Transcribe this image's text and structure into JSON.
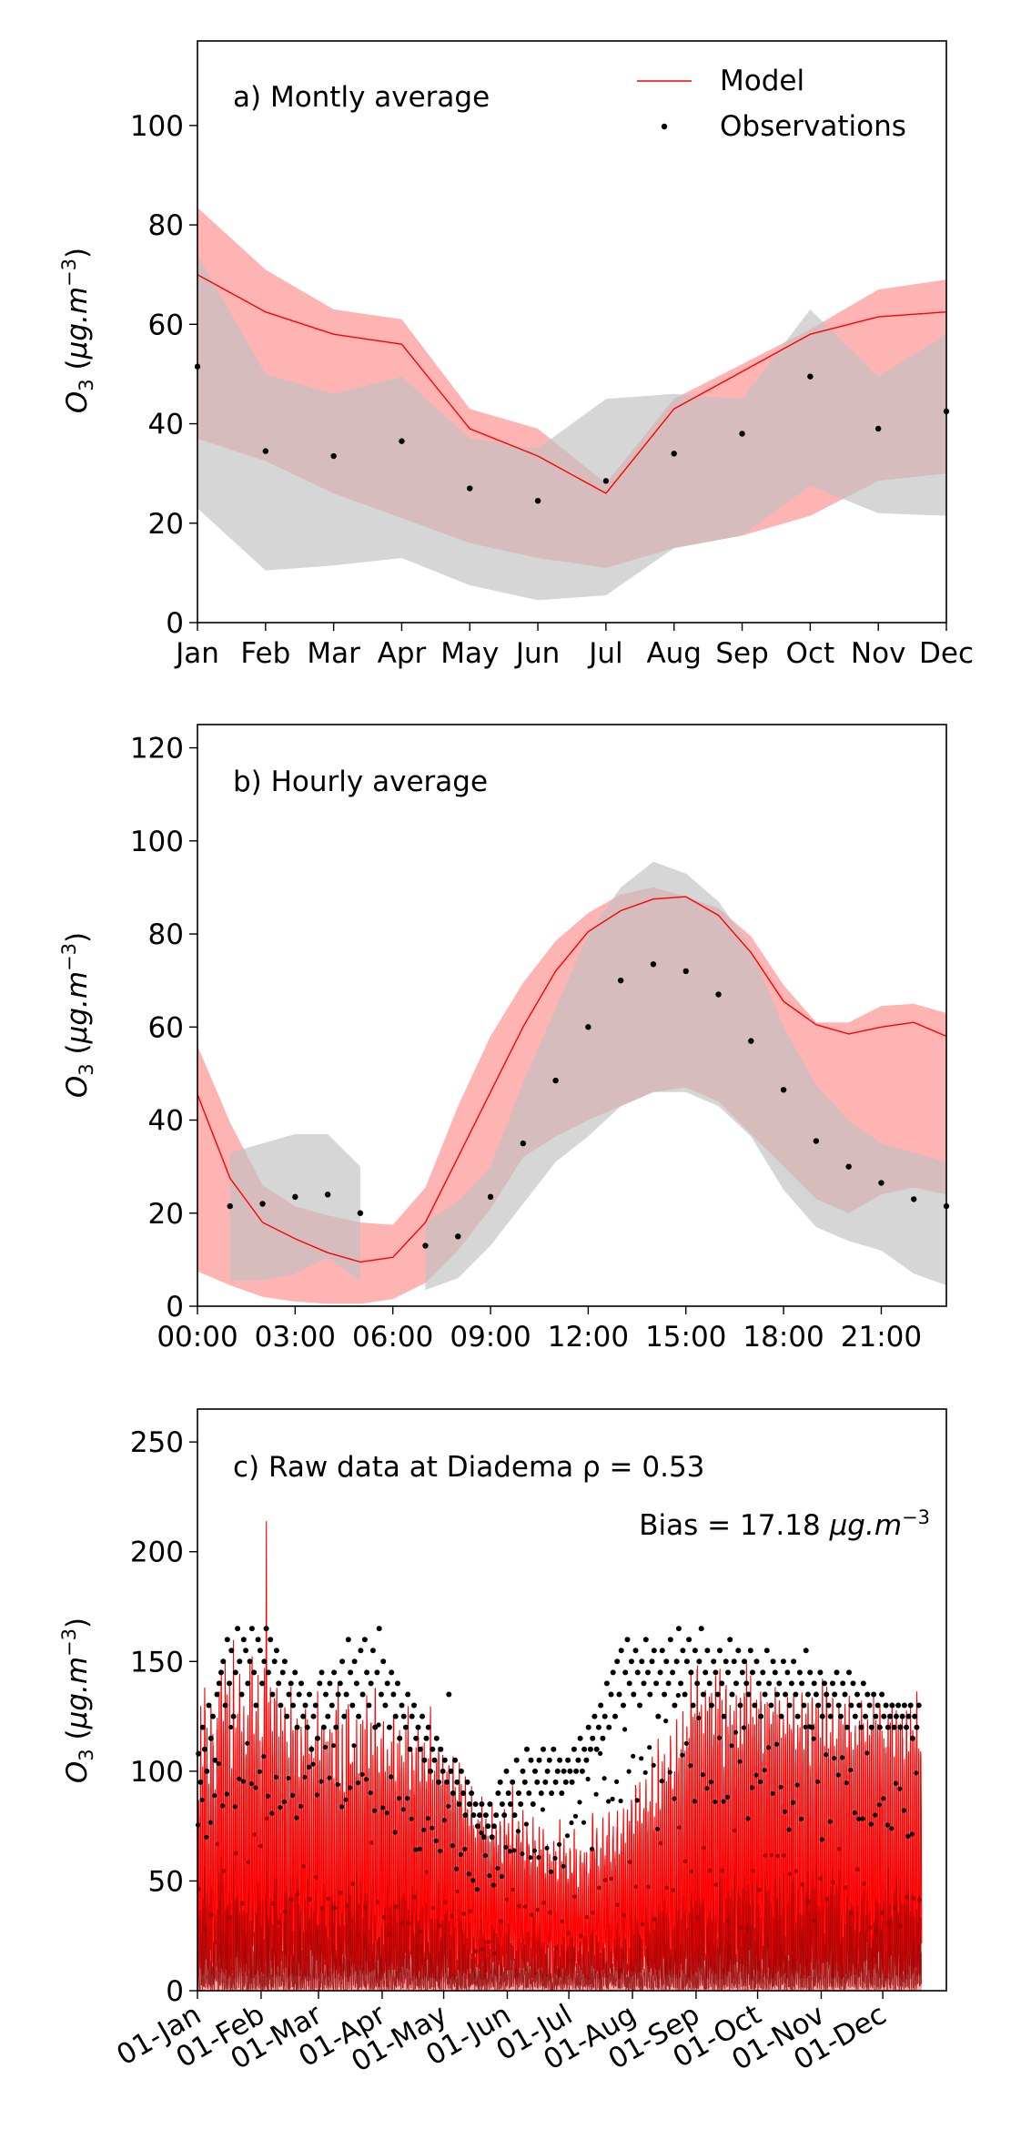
{
  "chart_data": [
    {
      "type": "line",
      "annotation": "a) Montly average",
      "ylabel": "O3 (μg.m⁻³)",
      "ylim": [
        0,
        117
      ],
      "yticks": [
        0,
        20,
        40,
        60,
        80,
        100
      ],
      "categories": [
        "Jan",
        "Feb",
        "Mar",
        "Apr",
        "May",
        "Jun",
        "Jul",
        "Aug",
        "Sep",
        "Oct",
        "Nov",
        "Dec"
      ],
      "legend": {
        "position": "top-right",
        "entries": [
          "Model",
          "Observations"
        ]
      },
      "series": [
        {
          "name": "Model",
          "kind": "line",
          "color": "#ff0000",
          "values": [
            70,
            62.5,
            58,
            56,
            39,
            33.5,
            26,
            43,
            50.5,
            58,
            61.5,
            62.5
          ]
        },
        {
          "name": "Observations",
          "kind": "points",
          "color": "#000000",
          "values": [
            51.5,
            34.5,
            33.5,
            36.5,
            27,
            24.5,
            28.5,
            34,
            38,
            49.5,
            39,
            42.5
          ]
        }
      ],
      "bands": [
        {
          "of": "Model",
          "color": "#ff8c8c",
          "lower": [
            37,
            32.5,
            26,
            21,
            16,
            13,
            11,
            15,
            17.5,
            21.5,
            28.5,
            30
          ],
          "upper": [
            83.5,
            71,
            63,
            61,
            43,
            39,
            28,
            45,
            52,
            59,
            67,
            69
          ]
        },
        {
          "of": "Observations",
          "color": "#c0c0c0",
          "lower": [
            23,
            10.5,
            11.5,
            13,
            7.5,
            4.5,
            5.5,
            15,
            17.5,
            27.5,
            22,
            21.5
          ],
          "upper": [
            74,
            50,
            46,
            49.5,
            37,
            35,
            45,
            46,
            45,
            63,
            49.5,
            58
          ]
        }
      ]
    },
    {
      "type": "line",
      "annotation": "b) Hourly average",
      "ylabel": "O3 (μg.m⁻³)",
      "ylim": [
        0,
        125
      ],
      "yticks": [
        0,
        20,
        40,
        60,
        80,
        100,
        120
      ],
      "xlim": [
        0,
        23
      ],
      "xticks": [
        "00:00",
        "03:00",
        "06:00",
        "09:00",
        "12:00",
        "15:00",
        "18:00",
        "21:00"
      ],
      "x": [
        0,
        1,
        2,
        3,
        4,
        5,
        6,
        7,
        8,
        9,
        10,
        11,
        12,
        13,
        14,
        15,
        16,
        17,
        18,
        19,
        20,
        21,
        22,
        23
      ],
      "series": [
        {
          "name": "Model",
          "kind": "line",
          "color": "#ff0000",
          "values": [
            45.5,
            27.5,
            18,
            14.5,
            11.5,
            9.5,
            10.5,
            18,
            32,
            46,
            60,
            72,
            80.5,
            85,
            87.5,
            88,
            84,
            76,
            65.5,
            60.5,
            58.5,
            60,
            61,
            58
          ]
        },
        {
          "name": "Observations",
          "kind": "points",
          "color": "#000000",
          "values": [
            null,
            21.5,
            22,
            23.5,
            24,
            20,
            null,
            13,
            15,
            23.5,
            35,
            48.5,
            60,
            70,
            73.5,
            72,
            67,
            57,
            46.5,
            35.5,
            30,
            26.5,
            23,
            21.5
          ]
        }
      ],
      "bands": [
        {
          "of": "Model",
          "color": "#ff8c8c",
          "lower": [
            7.5,
            4.5,
            2,
            1,
            0.5,
            0.5,
            1.5,
            5,
            12,
            21,
            32,
            36.5,
            40,
            43,
            46,
            47,
            44,
            37,
            30,
            23,
            20,
            24,
            25.5,
            24
          ],
          "upper": [
            56,
            39.5,
            26,
            21.5,
            19.5,
            18,
            17.5,
            25.5,
            43,
            58,
            69.5,
            78.5,
            84.5,
            88.5,
            90,
            88,
            85.5,
            79.5,
            69,
            61,
            61,
            64.5,
            65,
            63
          ]
        },
        {
          "of": "Observations",
          "color": "#c0c0c0",
          "lower": [
            null,
            5.5,
            5.5,
            7,
            10.5,
            5.5,
            null,
            3.5,
            6,
            13,
            22,
            31,
            36.5,
            43,
            46,
            46,
            43,
            36.5,
            25,
            17,
            14,
            12,
            7,
            4.5
          ],
          "upper": [
            null,
            33,
            35,
            37,
            37,
            30,
            null,
            18,
            22.5,
            30,
            48,
            64,
            80,
            90,
            95.5,
            93,
            87,
            77,
            60,
            47.5,
            40,
            35,
            33,
            31
          ]
        }
      ]
    },
    {
      "type": "line",
      "annotation": "c) Raw data at Diadema ρ = 0.53",
      "annotation2": "Bias = 17.18 μg.m⁻³",
      "ylabel": "O3 (μg.m⁻³)",
      "ylim": [
        0,
        265
      ],
      "yticks": [
        0,
        50,
        100,
        150,
        200,
        250
      ],
      "xticks": [
        "01-Jan",
        "01-Feb",
        "01-Mar",
        "01-Apr",
        "01-May",
        "01-Jun",
        "01-Jul",
        "01-Aug",
        "01-Sep",
        "01-Oct",
        "01-Nov",
        "01-Dec"
      ],
      "xtick_days": [
        0,
        31,
        59,
        90,
        120,
        151,
        181,
        212,
        243,
        273,
        304,
        334
      ],
      "xlim_days": [
        0,
        365
      ],
      "model_color": "#ff0000",
      "obs_color": "#000000",
      "daily_model_peak": [
        95,
        140,
        110,
        150,
        120,
        105,
        130,
        125,
        100,
        135,
        145,
        160,
        130,
        155,
        140,
        150,
        120,
        165,
        135,
        145,
        150,
        125,
        140,
        120,
        145,
        155,
        175,
        130,
        140,
        150,
        120,
        135,
        150,
        215,
        140,
        155,
        130,
        150,
        145,
        120,
        140,
        130,
        150,
        120,
        110,
        145,
        135,
        125,
        140,
        110,
        130,
        120,
        140,
        125,
        115,
        130,
        110,
        120,
        145,
        120,
        130,
        140,
        115,
        125,
        120,
        135,
        110,
        130,
        140,
        105,
        125,
        115,
        130,
        140,
        120,
        110,
        125,
        135,
        115,
        140,
        130,
        120,
        145,
        120,
        130,
        115,
        150,
        120,
        105,
        130,
        140,
        115,
        125,
        110,
        120,
        135,
        105,
        115,
        130,
        120,
        110,
        120,
        135,
        100,
        125,
        110,
        120,
        130,
        105,
        115,
        120,
        105,
        110,
        130,
        100,
        115,
        105,
        120,
        95,
        110,
        105,
        100,
        115,
        95,
        110,
        100,
        90,
        105,
        95,
        85,
        100,
        90,
        80,
        95,
        85,
        75,
        90,
        80,
        95,
        75,
        85,
        80,
        70,
        90,
        75,
        85,
        70,
        80,
        65,
        85,
        75,
        80,
        70,
        95,
        65,
        75,
        80,
        70,
        85,
        60,
        75,
        70,
        65,
        80,
        70,
        60,
        75,
        65,
        80,
        55,
        70,
        65,
        60,
        75,
        65,
        55,
        80,
        60,
        70,
        65,
        55,
        70,
        60,
        75,
        65,
        50,
        70,
        60,
        65,
        75,
        55,
        70,
        85,
        65,
        75,
        60,
        70,
        80,
        65,
        75,
        90,
        60,
        80,
        70,
        85,
        65,
        75,
        95,
        70,
        85,
        80,
        90,
        75,
        95,
        85,
        100,
        80,
        90,
        105,
        85,
        95,
        110,
        90,
        100,
        115,
        95,
        105,
        120,
        100,
        110,
        125,
        105,
        115,
        130,
        110,
        120,
        135,
        115,
        140,
        120,
        150,
        125,
        135,
        160,
        130,
        145,
        120,
        155,
        135,
        140,
        150,
        125,
        145,
        130,
        150,
        140,
        120,
        155,
        135,
        145,
        125,
        150,
        140,
        130,
        155,
        120,
        145,
        160,
        135,
        150,
        125,
        140,
        155,
        130,
        145,
        120,
        150,
        135,
        155,
        125,
        140,
        145,
        130,
        150,
        120,
        140,
        135,
        150,
        125,
        145,
        135,
        120,
        140,
        130,
        145,
        125,
        135,
        150,
        120,
        140,
        125,
        145,
        135,
        120,
        150,
        130,
        140,
        125,
        135,
        145,
        120,
        130,
        140,
        125,
        135,
        150,
        120,
        140,
        130,
        125,
        145,
        120,
        135,
        140,
        125,
        130,
        150,
        120,
        135,
        140,
        125,
        130,
        145,
        120,
        135,
        125,
        140,
        130,
        145,
        120,
        135,
        125,
        140,
        130,
        120,
        145,
        125,
        135,
        130,
        120,
        140,
        125,
        130
      ],
      "daily_obs_peak": [
        108,
        95,
        120,
        110,
        100,
        130,
        115,
        125,
        105,
        135,
        140,
        145,
        150,
        130,
        160,
        140,
        155,
        125,
        145,
        165,
        150,
        135,
        160,
        155,
        140,
        150,
        165,
        145,
        130,
        160,
        155,
        140,
        150,
        165,
        145,
        160,
        135,
        150,
        155,
        140,
        130,
        145,
        150,
        125,
        135,
        140,
        130,
        145,
        120,
        135,
        140,
        125,
        130,
        120,
        135,
        110,
        125,
        130,
        115,
        140,
        145,
        120,
        135,
        125,
        140,
        130,
        145,
        120,
        135,
        140,
        150,
        125,
        135,
        160,
        145,
        130,
        150,
        140,
        125,
        155,
        135,
        160,
        145,
        130,
        140,
        155,
        120,
        145,
        165,
        135,
        150,
        130,
        140,
        120,
        145,
        135,
        125,
        140,
        115,
        130,
        125,
        120,
        135,
        110,
        125,
        130,
        115,
        120,
        110,
        125,
        105,
        115,
        120,
        100,
        110,
        105,
        115,
        95,
        110,
        100,
        105,
        95,
        135,
        100,
        90,
        105,
        95,
        85,
        100,
        90,
        80,
        95,
        85,
        90,
        80,
        85,
        75,
        80,
        85,
        70,
        80,
        75,
        85,
        70,
        75,
        80,
        90,
        95,
        85,
        80,
        100,
        90,
        85,
        95,
        80,
        105,
        90,
        85,
        100,
        95,
        110,
        90,
        105,
        85,
        100,
        95,
        105,
        90,
        110,
        95,
        100,
        105,
        90,
        110,
        95,
        100,
        105,
        90,
        100,
        95,
        105,
        100,
        95,
        110,
        100,
        105,
        115,
        100,
        110,
        105,
        120,
        110,
        115,
        125,
        110,
        120,
        130,
        115,
        125,
        140,
        120,
        135,
        145,
        125,
        150,
        135,
        155,
        130,
        145,
        160,
        140,
        150,
        135,
        155,
        145,
        130,
        150,
        140,
        160,
        145,
        135,
        150,
        155,
        140,
        125,
        145,
        155,
        135,
        150,
        140,
        160,
        145,
        130,
        150,
        165,
        140,
        155,
        135,
        150,
        160,
        145,
        130,
        155,
        140,
        150,
        165,
        135,
        145,
        155,
        140,
        130,
        150,
        145,
        135,
        155,
        140,
        125,
        150,
        145,
        160,
        135,
        150,
        140,
        155,
        130,
        145,
        150,
        140,
        135,
        155,
        145,
        130,
        150,
        140,
        125,
        145,
        135,
        155,
        140,
        130,
        150,
        145,
        135,
        140,
        125,
        150,
        135,
        145,
        130,
        140,
        150,
        135,
        125,
        145,
        140,
        130,
        155,
        135,
        145,
        120,
        140,
        135,
        130,
        145,
        125,
        140,
        135,
        130,
        125,
        140,
        135,
        145,
        130,
        125,
        140,
        135,
        120,
        145,
        130,
        140,
        125,
        135,
        130,
        120,
        140,
        125,
        135,
        130,
        120,
        135,
        125,
        130,
        120,
        135,
        125,
        130,
        120,
        125,
        130,
        120,
        125,
        130,
        120,
        125,
        130,
        120,
        125,
        130,
        115,
        125,
        120,
        130
      ]
    }
  ]
}
